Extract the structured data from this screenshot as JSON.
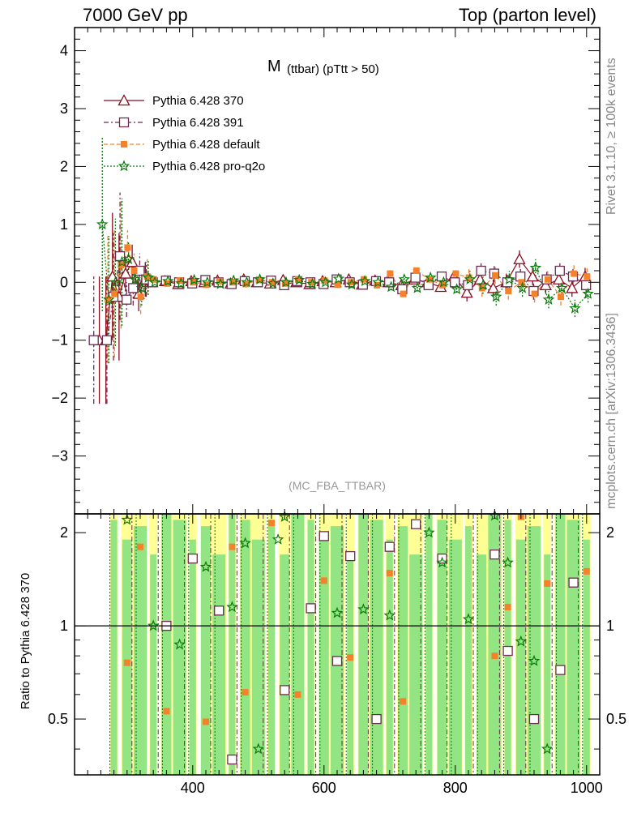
{
  "header": {
    "left": "7000 GeV pp",
    "right": "Top (parton level)"
  },
  "side_labels": {
    "rivet": "Rivet 3.1.10, ≥ 100k events",
    "mcplots": "mcplots.cern.ch [arXiv:1306.3436]"
  },
  "chart_data": {
    "type": "scatter",
    "title_main": "M",
    "title_sub": "(ttbar) (pTtt > 50)",
    "watermark": "(MC_FBA_TTBAR)",
    "ylabel_ratio": "Ratio to Pythia 6.428 370",
    "xlim": [
      220,
      1020
    ],
    "ylim": [
      -4.0,
      4.4
    ],
    "ratio_ylim": [
      0.33,
      2.3
    ],
    "x_ticks": [
      400,
      600,
      800,
      1000
    ],
    "y_ticks": [
      -3,
      -2,
      -1,
      0,
      1,
      2,
      3,
      4
    ],
    "ratio_y_ticks": [
      0.5,
      1,
      2
    ],
    "x": [
      250,
      260,
      270,
      280,
      290,
      300,
      310,
      320,
      330,
      340,
      360,
      380,
      400,
      420,
      440,
      460,
      480,
      500,
      520,
      540,
      560,
      580,
      600,
      620,
      640,
      660,
      680,
      700,
      720,
      740,
      760,
      780,
      800,
      820,
      840,
      860,
      880,
      900,
      920,
      940,
      960,
      980,
      1000
    ],
    "series": [
      {
        "name": "Pythia 6.428 370",
        "color": "#8b0a1e",
        "marker": "triangle",
        "values": [
          null,
          -1.0,
          -1.0,
          0.1,
          -0.25,
          0.15,
          0.35,
          -0.2,
          0.05,
          0.0,
          0.02,
          -0.03,
          0.02,
          0.0,
          0.03,
          -0.02,
          0.05,
          0.0,
          -0.02,
          0.04,
          0.0,
          -0.03,
          0.02,
          0.0,
          0.05,
          -0.04,
          0.03,
          0.0,
          -0.05,
          0.05,
          0.0,
          -0.08,
          0.1,
          -0.18,
          0.05,
          -0.1,
          0.0,
          0.4,
          0.1,
          -0.05,
          0.05,
          -0.1,
          0.1
        ]
      },
      {
        "name": "Pythia 6.428 391",
        "color": "#6b2c50",
        "marker": "square",
        "values": [
          -1.0,
          null,
          -1.0,
          -0.25,
          0.45,
          -0.3,
          -0.1,
          0.2,
          0.05,
          0.0,
          0.03,
          0.0,
          -0.02,
          0.04,
          0.0,
          -0.03,
          0.02,
          0.0,
          0.03,
          -0.05,
          0.02,
          0.0,
          -0.03,
          0.05,
          0.0,
          -0.04,
          0.02,
          0.0,
          -0.12,
          0.08,
          -0.05,
          0.1,
          0.0,
          -0.05,
          0.2,
          0.15,
          0.0,
          0.1,
          -0.15,
          0.05,
          0.2,
          0.1,
          -0.05
        ]
      },
      {
        "name": "Pythia 6.428 default",
        "color": "#f5822a",
        "marker": "filled-square",
        "values": [
          null,
          null,
          -0.3,
          -0.2,
          0.3,
          0.6,
          0.2,
          -0.25,
          0.1,
          0.05,
          -0.02,
          0.03,
          0.0,
          -0.04,
          0.02,
          0.0,
          -0.03,
          0.04,
          0.0,
          -0.02,
          0.05,
          0.0,
          0.03,
          -0.04,
          0.0,
          0.05,
          -0.05,
          0.15,
          -0.2,
          0.2,
          0.05,
          -0.05,
          0.15,
          0.08,
          -0.1,
          0.12,
          -0.15,
          0.0,
          -0.2,
          0.05,
          -0.25,
          0.15,
          0.1
        ]
      },
      {
        "name": "Pythia 6.428 pro-q2o",
        "color": "#0a7a0a",
        "marker": "star",
        "values": [
          null,
          1.0,
          -0.3,
          0.0,
          0.35,
          0.4,
          0.05,
          -0.1,
          0.08,
          0.0,
          0.02,
          -0.02,
          0.04,
          0.0,
          -0.03,
          0.03,
          0.0,
          0.05,
          -0.02,
          0.0,
          0.04,
          -0.03,
          0.0,
          0.06,
          -0.04,
          0.02,
          0.0,
          -0.08,
          0.05,
          -0.1,
          0.08,
          0.0,
          -0.12,
          0.05,
          -0.05,
          -0.25,
          0.05,
          -0.1,
          0.25,
          -0.3,
          -0.1,
          -0.45,
          -0.2
        ]
      }
    ],
    "ratio": {
      "x": [
        280,
        300,
        320,
        340,
        360,
        380,
        400,
        420,
        440,
        460,
        480,
        500,
        520,
        540,
        560,
        580,
        600,
        620,
        640,
        660,
        680,
        700,
        720,
        740,
        760,
        780,
        800,
        820,
        840,
        860,
        880,
        900,
        920,
        940,
        960,
        980,
        1000
      ],
      "pythia391": [
        null,
        null,
        null,
        null,
        1.0,
        null,
        1.65,
        null,
        1.12,
        0.37,
        null,
        null,
        null,
        0.62,
        null,
        1.14,
        1.95,
        0.77,
        1.68,
        null,
        0.5,
        1.8,
        null,
        2.13,
        null,
        1.65,
        null,
        null,
        null,
        1.7,
        0.83,
        null,
        0.5,
        null,
        0.72,
        1.38,
        null
      ],
      "pythia_default": [
        null,
        0.76,
        1.8,
        null,
        0.53,
        null,
        null,
        0.49,
        null,
        1.8,
        0.61,
        null,
        2.15,
        null,
        0.6,
        null,
        1.4,
        null,
        0.79,
        null,
        null,
        1.48,
        0.57,
        null,
        null,
        null,
        null,
        null,
        null,
        0.8,
        1.15,
        2.25,
        null,
        1.37,
        null,
        null,
        1.5
      ]
    }
  }
}
